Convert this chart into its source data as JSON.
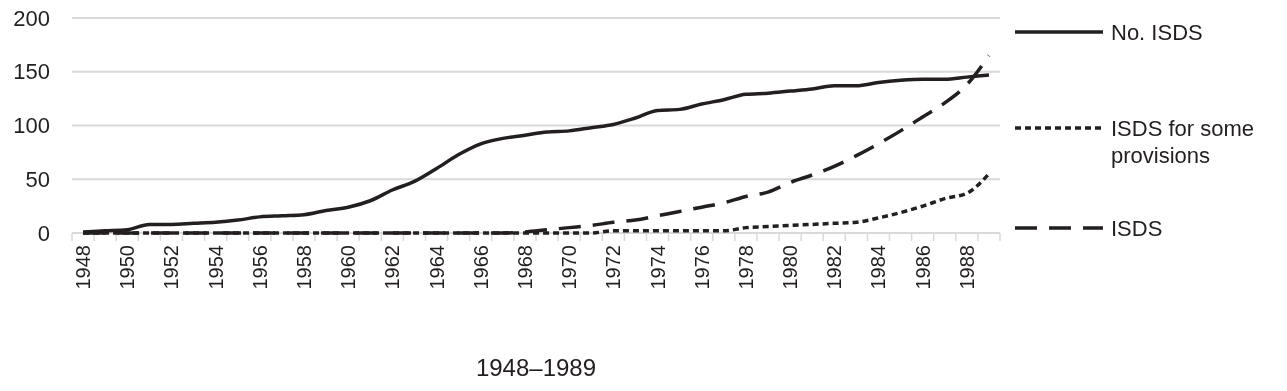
{
  "chart_data": {
    "type": "line",
    "xlabel": "1948–1989",
    "categories": [
      "1948",
      null,
      "1950",
      null,
      "1952",
      null,
      "1954",
      null,
      "1956",
      null,
      "1958",
      null,
      "1960",
      null,
      "1962",
      null,
      "1964",
      null,
      "1966",
      null,
      "1968",
      null,
      "1970",
      null,
      "1972",
      null,
      "1974",
      null,
      "1976",
      null,
      "1978",
      null,
      "1980",
      null,
      "1982",
      null,
      "1984",
      null,
      "1986",
      null,
      "1988",
      null
    ],
    "ylim": [
      0,
      200
    ],
    "yticks": [
      0,
      50,
      100,
      150,
      200
    ],
    "grid": "y",
    "legend": "right",
    "series": [
      {
        "name": "No. ISDS",
        "color": "#231f20",
        "line_style": "solid",
        "values": [
          1,
          2,
          3,
          8,
          8,
          9,
          10,
          12,
          15,
          16,
          17,
          21,
          24,
          30,
          40,
          48,
          60,
          73,
          83,
          88,
          91,
          94,
          95,
          98,
          101,
          107,
          114,
          115,
          120,
          124,
          129,
          130,
          132,
          134,
          137,
          137,
          140,
          142,
          143,
          143,
          145,
          147
        ]
      },
      {
        "name": "ISDS for some provisions",
        "color": "#231f20",
        "line_style": "dotted",
        "values": [
          0,
          0,
          0,
          0,
          0,
          0,
          0,
          0,
          0,
          0,
          0,
          0,
          0,
          0,
          0,
          0,
          0,
          0,
          0,
          0,
          0,
          0,
          0,
          0,
          2,
          2,
          2,
          2,
          2,
          2,
          5,
          6,
          7,
          8,
          9,
          10,
          14,
          19,
          25,
          32,
          37,
          55
        ]
      },
      {
        "name": "ISDS",
        "color": "#231f20",
        "line_style": "dashed",
        "values": [
          0,
          0,
          0,
          0,
          0,
          0,
          0,
          0,
          0,
          0,
          0,
          0,
          0,
          0,
          0,
          0,
          0,
          0,
          0,
          0,
          1,
          3,
          5,
          7,
          10,
          12,
          16,
          20,
          24,
          28,
          34,
          38,
          47,
          54,
          62,
          72,
          83,
          95,
          108,
          121,
          138,
          165
        ]
      }
    ]
  }
}
